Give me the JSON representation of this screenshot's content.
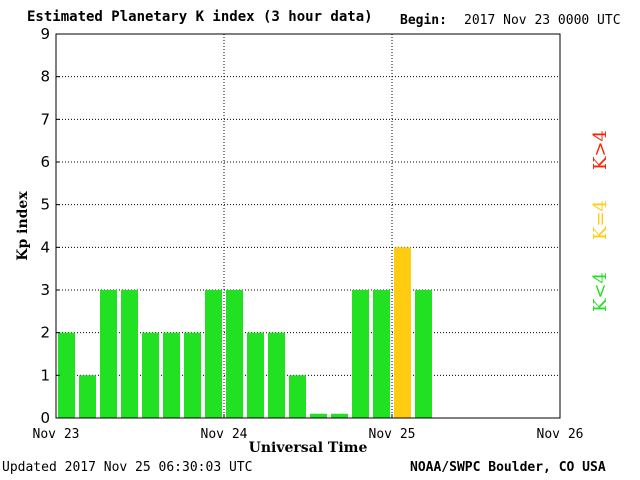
{
  "header": {
    "title": "Estimated Planetary K index (3 hour data)",
    "begin_label": "Begin:",
    "begin_value": "2017 Nov 23 0000 UTC"
  },
  "footer": {
    "updated": "Updated 2017 Nov 25 06:30:03 UTC",
    "credit": "NOAA/SWPC Boulder, CO USA"
  },
  "legend": [
    {
      "label": "K<4",
      "color": "#22e022"
    },
    {
      "label": "K=4",
      "color": "#ffcc11"
    },
    {
      "label": "K>4",
      "color": "#ff2200"
    }
  ],
  "chart_data": {
    "type": "bar",
    "title": "Estimated Planetary K index (3 hour data)",
    "xlabel": "Universal Time",
    "ylabel": "Kp index",
    "ylim": [
      0,
      9
    ],
    "yticks": [
      "0",
      "1",
      "2",
      "3",
      "4",
      "5",
      "6",
      "7",
      "8",
      "9"
    ],
    "x_tick_labels": [
      "Nov 23",
      "Nov 24",
      "Nov 25",
      "Nov 26"
    ],
    "interval_hours": 3,
    "values": [
      2,
      1,
      3,
      3,
      2,
      2,
      2,
      3,
      3,
      2,
      2,
      1,
      0.1,
      0.1,
      3,
      3,
      4,
      3
    ],
    "threshold_colors": {
      "below_4": "#22e022",
      "equal_4": "#ffcc11",
      "above_4": "#ff2200"
    },
    "grid": "dotted"
  }
}
